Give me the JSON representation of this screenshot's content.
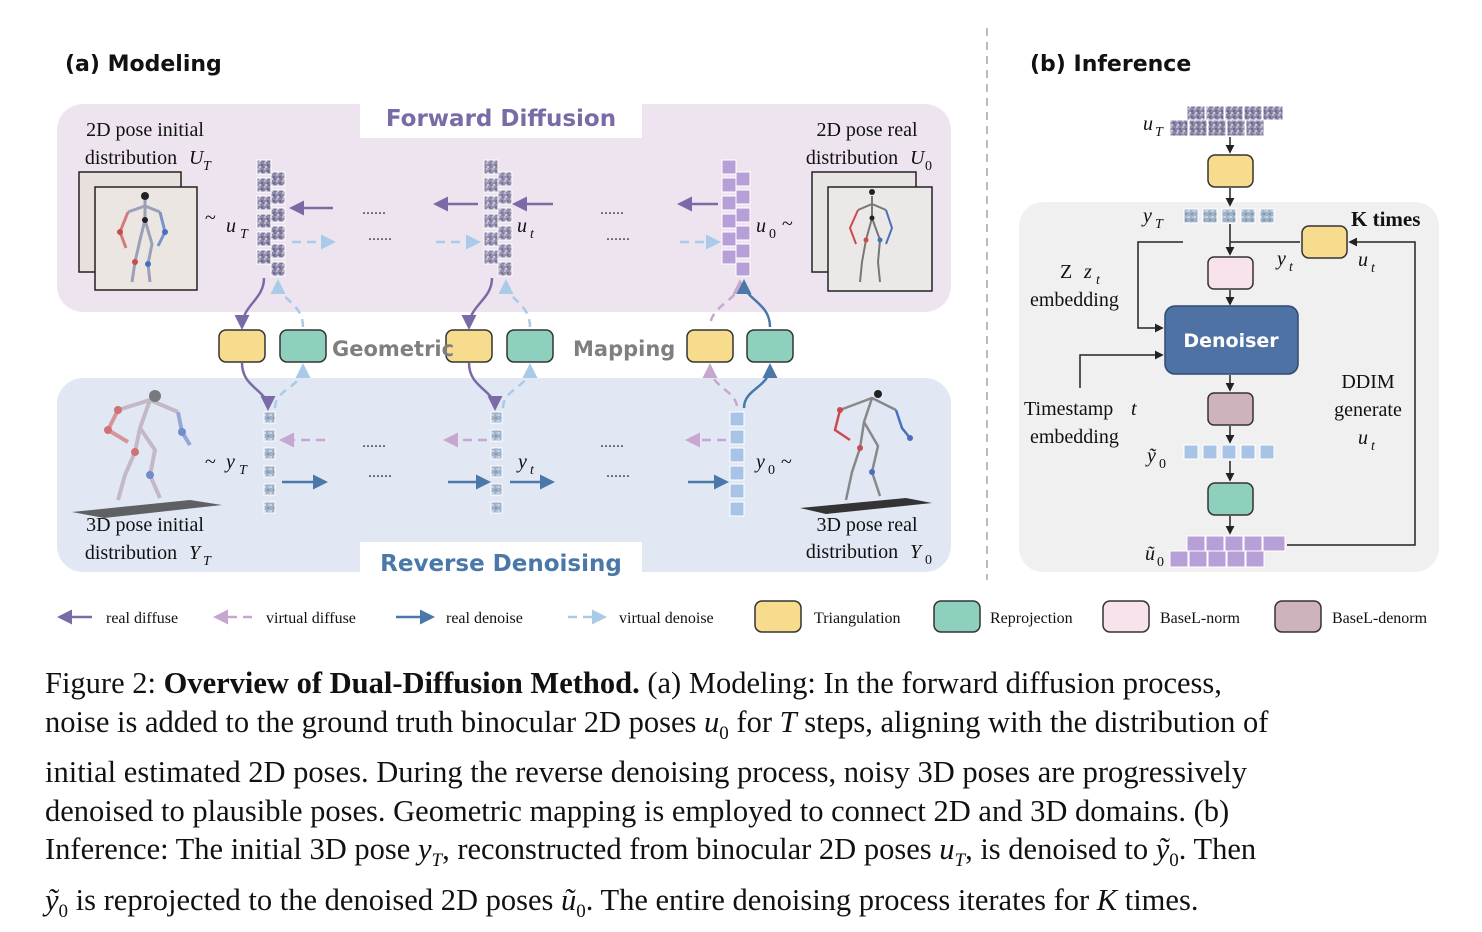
{
  "panel_a": {
    "title": "(a) Modeling",
    "forward_label": "Forward Diffusion",
    "reverse_label": "Reverse Denoising",
    "geometric_label": "Geometric",
    "mapping_label": "Mapping",
    "init2d_line1": "2D pose initial",
    "init2d_line2": "distribution",
    "init2d_sym": "U",
    "init2d_sub": "T",
    "real2d_line1": "2D pose real",
    "real2d_line2": "distribution",
    "real2d_sym": "U",
    "real2d_sub": "0",
    "init3d_line1": "3D pose initial",
    "init3d_line2": "distribution",
    "init3d_sym": "Y",
    "init3d_sub": "T",
    "real3d_line1": "3D pose real",
    "real3d_line2": "distribution",
    "real3d_sym": "Y",
    "real3d_sub": "0",
    "tilde": "~",
    "u_sym": "u",
    "y_sym": "y",
    "sub_T": "T",
    "sub_t": "t",
    "sub_0": "0",
    "dots": "......"
  },
  "panel_b": {
    "title": "(b) Inference",
    "uT_sym": "u",
    "uT_sub": "T",
    "yT_sym": "y",
    "yT_sub": "T",
    "k_times": "K times",
    "yt_sym": "y",
    "yt_sub": "t",
    "ut_sym": "u",
    "ut_sub": "t",
    "z_line1": "Z",
    "z_sym": "z",
    "z_sub": "t",
    "z_line2": "embedding",
    "denoiser": "Denoiser",
    "time_line1": "Timestamp",
    "time_sym": "t",
    "time_line2": "embedding",
    "ddim_line1": "DDIM",
    "ddim_line2": "generate",
    "ddim_sym": "u",
    "ddim_sub": "t",
    "y0_sym": "ỹ",
    "y0_sub": "0",
    "u0_sym": "ũ",
    "u0_sub": "0"
  },
  "legend": {
    "real_diffuse": "real diffuse",
    "virtual_diffuse": "virtual diffuse",
    "real_denoise": "real denoise",
    "virtual_denoise": "virtual denoise",
    "triangulation": "Triangulation",
    "reprojection": "Reprojection",
    "basel_norm": "BaseL-norm",
    "basel_denorm": "BaseL-denorm"
  },
  "caption": {
    "label": "Figure 2:",
    "bold": "Overview of Dual-Diffusion Method.",
    "l1": "(a) Modeling: In the forward diffusion process,",
    "l2a": "noise is added to the ground truth binocular 2D poses",
    "l2b": "u",
    "l2c": "0",
    "l2d": "for",
    "l2e": "T",
    "l2f": "steps, aligning with the distribution of",
    "l3": "initial estimated 2D poses. During the reverse denoising process, noisy 3D poses are progressively",
    "l4": "denoised to plausible poses. Geometric mapping is employed to connect 2D and 3D domains. (b)",
    "l5a": "Inference: The initial 3D pose",
    "l5b": "y",
    "l5c": "T",
    "l5d": ", reconstructed from binocular 2D poses",
    "l5e": "u",
    "l5f": "T",
    "l5g": ", is denoised to",
    "l5h": "ỹ",
    "l5i": "0",
    "l5j": ". Then",
    "l6a": "ỹ",
    "l6b": "0",
    "l6c": "is reprojected to the denoised 2D poses",
    "l6d": "ũ",
    "l6e": "0",
    "l6f": ". The entire denoising process iterates for",
    "l6g": "K",
    "l6h": "times."
  },
  "colors": {
    "real_diffuse": "#7a6aa6",
    "virtual_diffuse": "#c7a7cf",
    "real_denoise": "#4a78a8",
    "virtual_denoise": "#a9cbe8",
    "triangulation": "#f7dc8e",
    "reprojection": "#8ed0bd",
    "basel_norm": "#f8e3ec",
    "basel_denorm": "#cfb3bc",
    "denoiser": "#4e72a4",
    "forward_panel": "#ede4ef",
    "reverse_panel": "#e1e8f4",
    "inference_panel": "#f0f0f0"
  }
}
